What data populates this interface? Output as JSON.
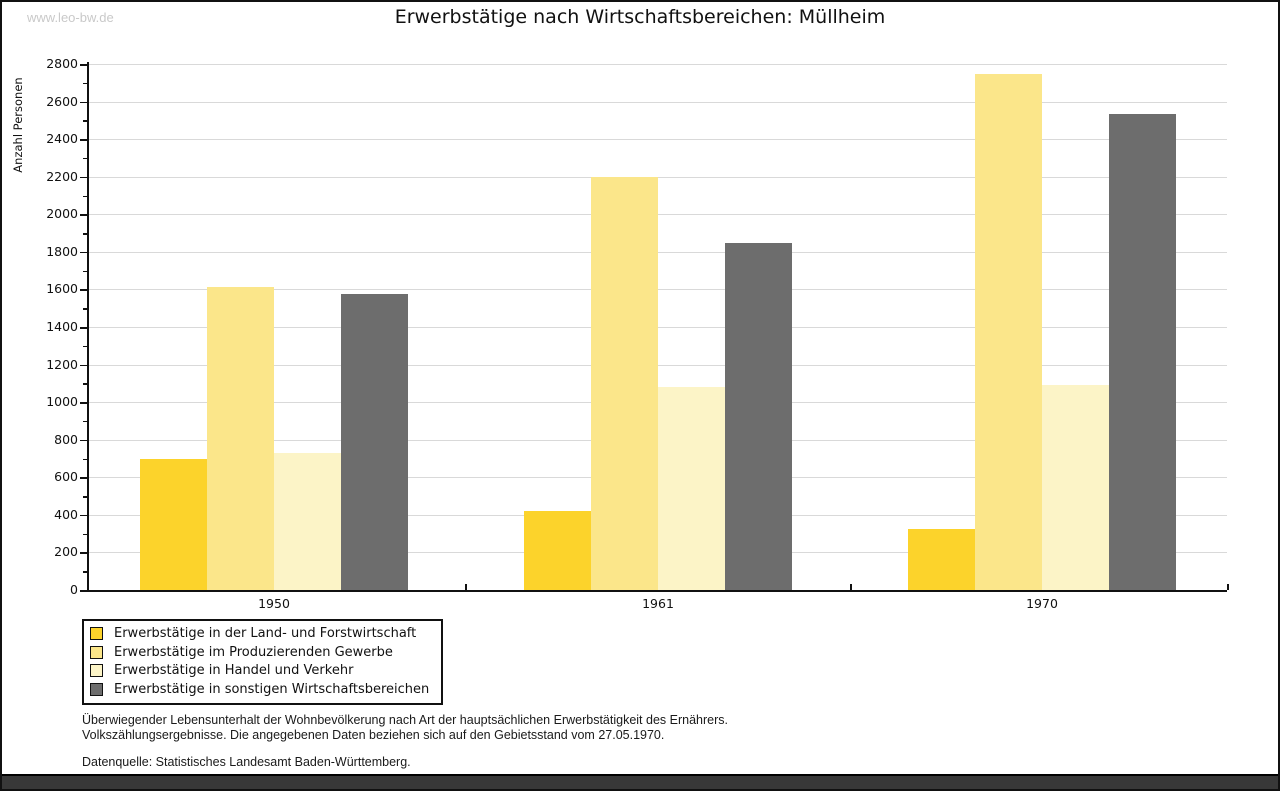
{
  "watermark": "www.leo-bw.de",
  "title": "Erwerbstätige nach Wirtschaftsbereichen: Müllheim",
  "chart_data": {
    "type": "bar",
    "title": "Erwerbstätige nach Wirtschaftsbereichen: Müllheim",
    "xlabel": "",
    "ylabel": "Anzahl Personen",
    "categories": [
      "1950",
      "1961",
      "1970"
    ],
    "series": [
      {
        "name": "Erwerbstätige in der Land- und Forstwirtschaft",
        "color": "#FCD32B",
        "values": [
          700,
          420,
          325
        ]
      },
      {
        "name": "Erwerbstätige im Produzierenden Gewerbe",
        "color": "#FBE68A",
        "values": [
          1615,
          2200,
          2745
        ]
      },
      {
        "name": "Erwerbstätige in Handel und Verkehr",
        "color": "#FCF4C7",
        "values": [
          730,
          1080,
          1090
        ]
      },
      {
        "name": "Erwerbstätige in sonstigen Wirtschaftsbereichen",
        "color": "#6D6D6D",
        "values": [
          1575,
          1845,
          2535
        ]
      }
    ],
    "ylim": [
      0,
      2800
    ],
    "ytick_step": 200,
    "yminor_step": 100,
    "grid": true,
    "legend_position": "bottom-left"
  },
  "footnotes": {
    "line1": "Überwiegender Lebensunterhalt der Wohnbevölkerung nach Art der hauptsächlichen Erwerbstätigkeit des Ernährers.",
    "line2": "Volkszählungsergebnisse. Die angegebenen Daten beziehen sich auf den Gebietsstand vom 27.05.1970.",
    "source": "Datenquelle: Statistisches Landesamt Baden-Württemberg."
  }
}
